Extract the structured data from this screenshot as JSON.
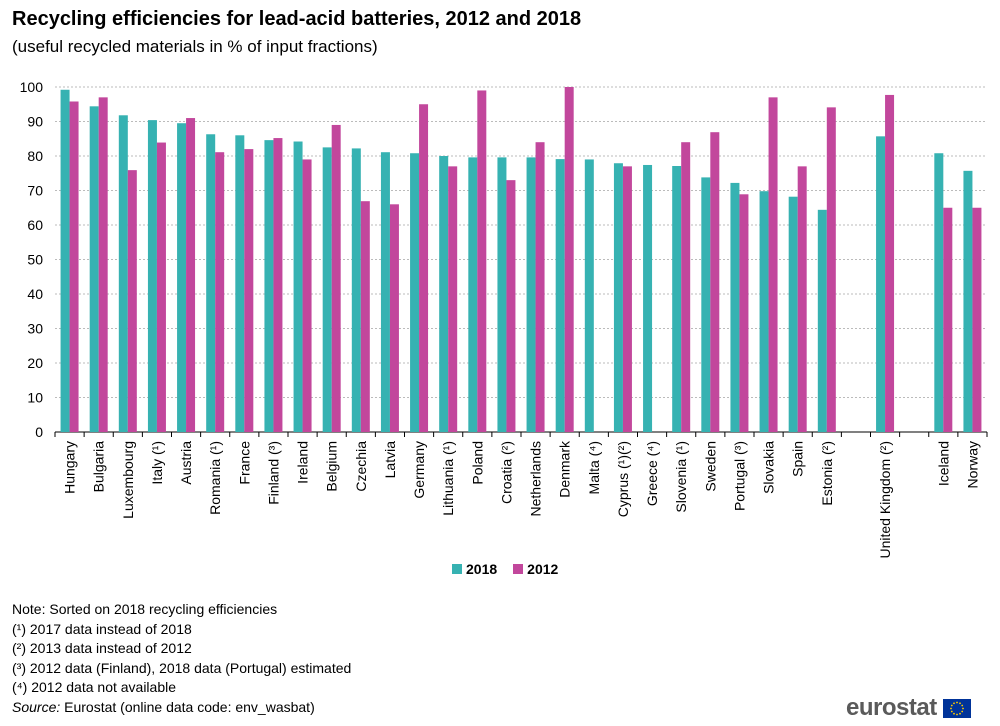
{
  "title": "Recycling efficiencies for lead-acid batteries, 2012 and 2018",
  "subtitle": "(useful recycled materials in % of input fractions)",
  "colors": {
    "series_2018": "#36b2b2",
    "series_2012": "#c2479c",
    "grid": "#bbbbbb",
    "axis": "#000000"
  },
  "chart_data": {
    "type": "bar",
    "ylim": [
      0,
      100
    ],
    "yticks": [
      0,
      10,
      20,
      30,
      40,
      50,
      60,
      70,
      80,
      90,
      100
    ],
    "grid": true,
    "legend_position": "bottom",
    "categories": [
      "Hungary",
      "Bulgaria",
      "Luxembourg",
      "Italy (¹)",
      "Austria",
      "Romania (¹)",
      "France",
      "Finland (³)",
      "Ireland",
      "Belgium",
      "Czechia",
      "Latvia",
      "Germany",
      "Lithuania (¹)",
      "Poland",
      "Croatia (²)",
      "Netherlands",
      "Denmark",
      "Malta (⁴)",
      "Cyprus (¹)(²)",
      "Greece (⁴)",
      "Slovenia (¹)",
      "Sweden",
      "Portugal (³)",
      "Slovakia",
      "Spain",
      "Estonia (²)",
      "",
      "United Kingdom (²)",
      "",
      "Iceland",
      "Norway"
    ],
    "series": [
      {
        "name": "2018",
        "values": [
          99.2,
          94.4,
          91.8,
          90.4,
          89.5,
          86.3,
          86.0,
          84.6,
          84.2,
          82.5,
          82.2,
          81.1,
          80.8,
          80.0,
          79.6,
          79.6,
          79.6,
          79.1,
          79.0,
          77.9,
          77.4,
          77.1,
          73.8,
          72.2,
          69.8,
          68.2,
          64.4,
          null,
          85.7,
          null,
          80.8,
          75.7
        ]
      },
      {
        "name": "2012",
        "values": [
          95.8,
          97.0,
          75.9,
          83.9,
          91.0,
          81.1,
          82.0,
          85.2,
          79.0,
          89.0,
          66.9,
          66.0,
          95.0,
          77.0,
          99.0,
          73.0,
          84.0,
          100.0,
          null,
          77.0,
          null,
          84.0,
          86.9,
          68.9,
          97.0,
          77.0,
          94.1,
          null,
          97.7,
          null,
          65.0,
          65.0
        ]
      }
    ]
  },
  "notes": {
    "note": "Note: Sorted on 2018 recycling efficiencies",
    "fn1": "(¹) 2017 data instead of 2018",
    "fn2": "(²) 2013 data instead of 2012",
    "fn3": "(³) 2012 data (Finland), 2018 data (Portugal) estimated",
    "fn4": "(⁴) 2012 data not available",
    "source_label": "Source:",
    "source_text": " Eurostat (online data code: env_wasbat)"
  },
  "logo": {
    "text": "eurostat"
  }
}
